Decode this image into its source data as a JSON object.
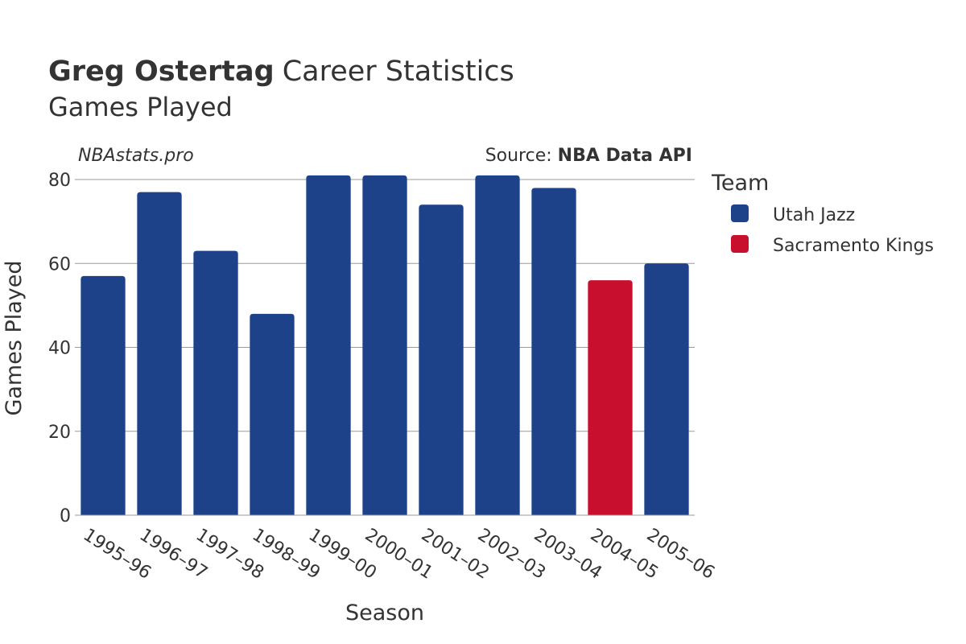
{
  "header": {
    "title_bold": "Greg Ostertag",
    "title_rest": "Career Statistics",
    "subtitle": "Games Played",
    "credit": "NBAstats.pro",
    "source_prefix": "Source: ",
    "source_name": "NBA Data API"
  },
  "colors": {
    "Utah Jazz": "#1d428a",
    "Sacramento Kings": "#c8102e"
  },
  "chart_data": {
    "type": "bar",
    "xlabel": "Season",
    "ylabel": "Games Played",
    "ylim": [
      0,
      80
    ],
    "yticks": [
      0,
      20,
      40,
      60,
      80
    ],
    "grid": true,
    "legend_title": "Team",
    "legend_position": "right",
    "legend": [
      "Utah Jazz",
      "Sacramento Kings"
    ],
    "categories": [
      "1995–96",
      "1996–97",
      "1997–98",
      "1998–99",
      "1999–00",
      "2000–01",
      "2001–02",
      "2002–03",
      "2003–04",
      "2004–05",
      "2005–06"
    ],
    "values": [
      57,
      77,
      63,
      48,
      81,
      81,
      74,
      81,
      78,
      56,
      60
    ],
    "teams": [
      "Utah Jazz",
      "Utah Jazz",
      "Utah Jazz",
      "Utah Jazz",
      "Utah Jazz",
      "Utah Jazz",
      "Utah Jazz",
      "Utah Jazz",
      "Utah Jazz",
      "Sacramento Kings",
      "Utah Jazz"
    ]
  }
}
